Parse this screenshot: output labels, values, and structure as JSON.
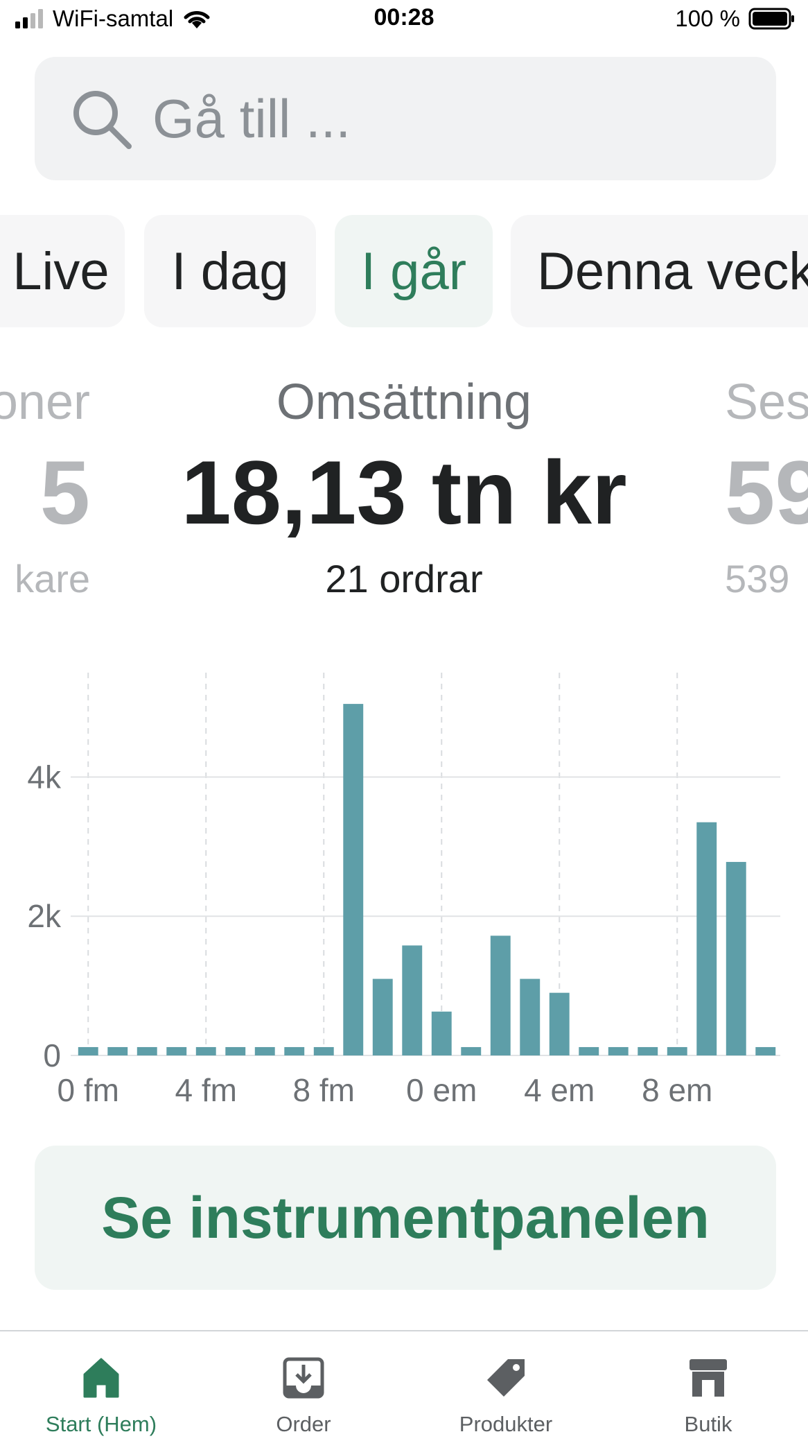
{
  "status_bar": {
    "carrier": "WiFi-samtal",
    "time": "00:28",
    "battery": "100 %"
  },
  "search": {
    "placeholder": "Gå till ..."
  },
  "tabs": [
    {
      "label": "Live",
      "active": false
    },
    {
      "label": "I dag",
      "active": false
    },
    {
      "label": "I går",
      "active": true
    },
    {
      "label": "Denna veck",
      "active": false
    }
  ],
  "metrics": {
    "left": {
      "label": "oner",
      "value": "5",
      "sub": "kare"
    },
    "center": {
      "label": "Omsättning",
      "value": "18,13 tn kr",
      "sub": "21 ordrar"
    },
    "right": {
      "label": "Ses",
      "value": "59",
      "sub": "539"
    }
  },
  "chart_data": {
    "type": "bar",
    "x": [
      "0 fm",
      "1 fm",
      "2 fm",
      "3 fm",
      "4 fm",
      "5 fm",
      "6 fm",
      "7 fm",
      "8 fm",
      "9 fm",
      "10 fm",
      "11 fm",
      "0 em",
      "1 em",
      "2 em",
      "3 em",
      "4 em",
      "5 em",
      "6 em",
      "7 em",
      "8 em",
      "9 em",
      "10 em",
      "11 em"
    ],
    "values": [
      120,
      120,
      120,
      120,
      120,
      120,
      120,
      120,
      120,
      5050,
      1100,
      1580,
      630,
      120,
      1720,
      1100,
      900,
      120,
      120,
      120,
      120,
      3350,
      2780,
      120
    ],
    "xticks": [
      "0 fm",
      "4 fm",
      "8 fm",
      "0 em",
      "4 em",
      "8 em"
    ],
    "yticks": [
      "0",
      "2k",
      "4k"
    ],
    "ylim": [
      0,
      5300
    ],
    "grid": true,
    "bar_color": "#5e9ea8"
  },
  "dashboard_button": {
    "label": "Se instrumentpanelen"
  },
  "bottom_nav": [
    {
      "label": "Start (Hem)",
      "icon": "home-icon",
      "active": true
    },
    {
      "label": "Order",
      "icon": "order-inbox-icon",
      "active": false
    },
    {
      "label": "Produkter",
      "icon": "tag-icon",
      "active": false
    },
    {
      "label": "Butik",
      "icon": "store-icon",
      "active": false
    }
  ],
  "colors": {
    "accent": "#2e7d5b",
    "bar": "#5e9ea8"
  }
}
